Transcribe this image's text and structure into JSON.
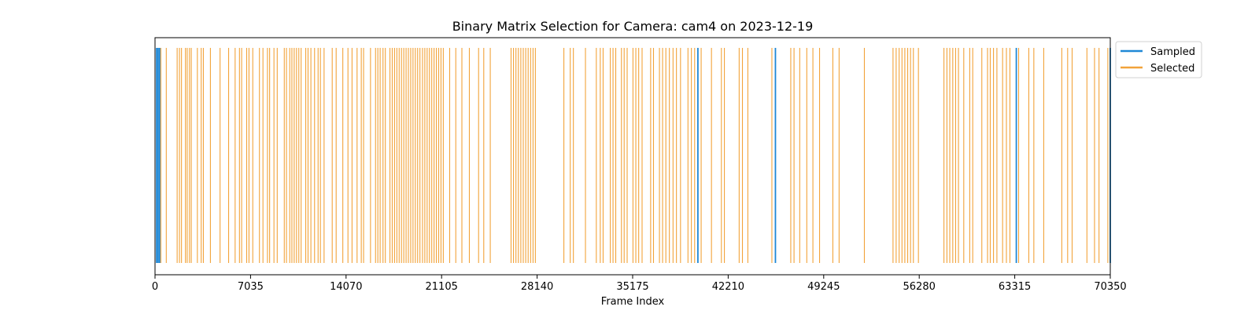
{
  "colors": {
    "sampled": "#1f88d6",
    "selected": "#f2a33a",
    "axis": "#000000",
    "background": "#ffffff"
  },
  "chart_data": {
    "type": "event-raster",
    "title": "Binary Matrix Selection for Camera: cam4 on 2023-12-19",
    "xlabel": "Frame Index",
    "ylabel": "",
    "xlim": [
      0,
      70350
    ],
    "xticks": [
      0,
      7035,
      14070,
      21105,
      28140,
      35175,
      42210,
      49245,
      56280,
      63315,
      70350
    ],
    "xtick_labels": [
      "0",
      "7035",
      "14070",
      "21105",
      "28140",
      "35175",
      "42210",
      "49245",
      "56280",
      "63315",
      "70350"
    ],
    "grid": false,
    "legend": {
      "placement": "outside-top-right",
      "entries": [
        "Sampled",
        "Selected"
      ]
    },
    "series": [
      {
        "name": "Sampled",
        "color": "#1f88d6",
        "x": [
          120,
          230,
          340,
          39980,
          45690,
          63430,
          70350
        ]
      },
      {
        "name": "Selected",
        "color": "#f2a33a",
        "x": [
          430,
          830,
          1630,
          1800,
          1950,
          2240,
          2370,
          2540,
          2670,
          3120,
          3400,
          3560,
          4080,
          4790,
          5420,
          5900,
          6220,
          6380,
          6750,
          6920,
          7200,
          7690,
          7950,
          8280,
          8440,
          8760,
          9000,
          9520,
          9680,
          9920,
          10080,
          10250,
          10420,
          10590,
          10760,
          11100,
          11270,
          11480,
          11750,
          12010,
          12180,
          12450,
          13050,
          13340,
          13830,
          14210,
          14510,
          14880,
          15190,
          15360,
          15870,
          16240,
          16410,
          16580,
          16790,
          16960,
          17300,
          17470,
          17640,
          17810,
          17980,
          18150,
          18320,
          18490,
          18660,
          18830,
          19000,
          19170,
          19340,
          19510,
          19700,
          19870,
          20040,
          20210,
          20380,
          20550,
          20720,
          20890,
          21060,
          21230,
          21700,
          22150,
          22600,
          23150,
          23830,
          24210,
          24690,
          26220,
          26400,
          26580,
          26760,
          26940,
          27120,
          27300,
          27480,
          27660,
          27840,
          28010,
          30110,
          30580,
          30810,
          31700,
          32500,
          32790,
          33000,
          33530,
          33730,
          33930,
          34350,
          34550,
          34770,
          35200,
          35410,
          35620,
          35870,
          36500,
          36710,
          37150,
          37380,
          37620,
          37880,
          38150,
          38400,
          38700,
          39250,
          39500,
          39740,
          40220,
          40980,
          41710,
          41930,
          43020,
          43260,
          43660,
          45430,
          46820,
          47060,
          47480,
          48000,
          48450,
          48940,
          49920,
          50380,
          52240,
          54350,
          54580,
          54800,
          55010,
          55220,
          55430,
          55640,
          55850,
          56220,
          58100,
          58320,
          58530,
          58750,
          58960,
          59170,
          59560,
          60000,
          60220,
          60890,
          61310,
          61510,
          61750,
          62000,
          62420,
          62700,
          62960,
          63600,
          64350,
          64720,
          65450,
          66780,
          67210,
          67540,
          68630,
          69190,
          69520,
          70170
        ]
      }
    ]
  }
}
